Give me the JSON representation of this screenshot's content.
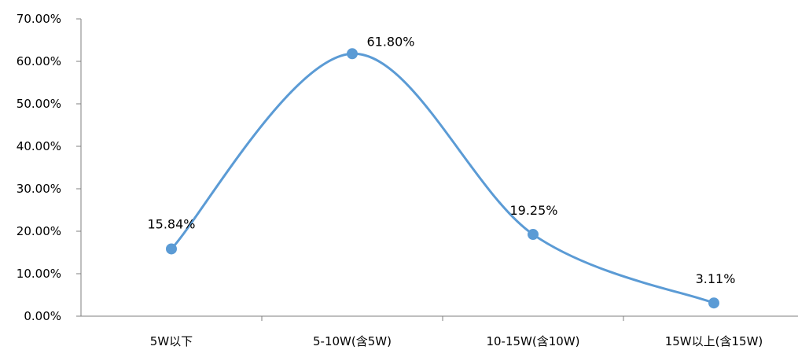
{
  "chart_data": {
    "type": "line",
    "smooth": true,
    "categories": [
      "5W以下",
      "5-10W(含5W)",
      "10-15W(含10W)",
      "15W以上(含15W)"
    ],
    "values": [
      15.84,
      61.8,
      19.25,
      3.11
    ],
    "data_labels": [
      "15.84%",
      "61.80%",
      "19.25%",
      "3.11%"
    ],
    "y_tick_labels": [
      "0.00%",
      "10.00%",
      "20.00%",
      "30.00%",
      "40.00%",
      "50.00%",
      "60.00%",
      "70.00%"
    ],
    "ylim": [
      0,
      70
    ],
    "y_step": 10,
    "grid": false,
    "legend": "none",
    "series_color": "#5b9bd5",
    "axis_color": "#7f7f7f"
  }
}
